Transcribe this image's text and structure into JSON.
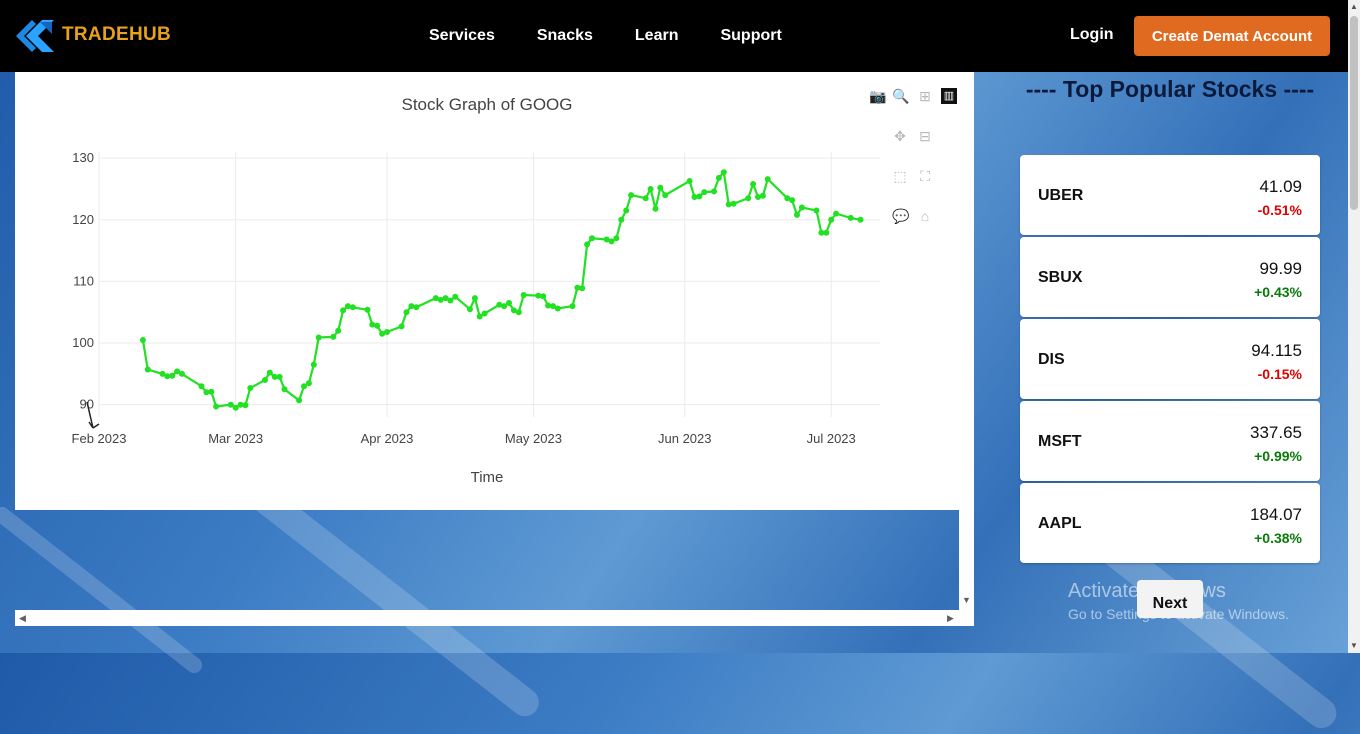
{
  "brand": {
    "name": "TRADEHUB",
    "logo_icon": "double-arrow-logo-icon",
    "accent": "#e8a11c"
  },
  "nav": {
    "links": [
      "Services",
      "Snacks",
      "Learn",
      "Support"
    ],
    "login": "Login",
    "cta": "Create Demat Account",
    "cta_color": "#e06a1f"
  },
  "chart_data": {
    "type": "line",
    "title": "Stock Graph of GOOG",
    "xlabel": "Time",
    "ylabel": "",
    "x_ticks": [
      "Feb 2023",
      "Mar 2023",
      "Apr 2023",
      "May 2023",
      "Jun 2023",
      "Jul 2023"
    ],
    "y_ticks": [
      90,
      100,
      110,
      120,
      130
    ],
    "ylim": [
      88,
      131
    ],
    "xlim": [
      "2023-02-01",
      "2023-07-11"
    ],
    "grid": true,
    "line_color": "#22e022",
    "series": [
      {
        "name": "",
        "points": [
          [
            "2023-02-10",
            100.5
          ],
          [
            "2023-02-11",
            95.7
          ],
          [
            "2023-02-14",
            95.0
          ],
          [
            "2023-02-15",
            94.6
          ],
          [
            "2023-02-16",
            94.7
          ],
          [
            "2023-02-17",
            95.4
          ],
          [
            "2023-02-18",
            95.0
          ],
          [
            "2023-02-22",
            93.0
          ],
          [
            "2023-02-23",
            92.0
          ],
          [
            "2023-02-24",
            92.1
          ],
          [
            "2023-02-25",
            89.7
          ],
          [
            "2023-02-28",
            90.0
          ],
          [
            "2023-03-01",
            89.5
          ],
          [
            "2023-03-02",
            90.0
          ],
          [
            "2023-03-03",
            89.9
          ],
          [
            "2023-03-04",
            92.7
          ],
          [
            "2023-03-07",
            94.0
          ],
          [
            "2023-03-08",
            95.2
          ],
          [
            "2023-03-09",
            94.5
          ],
          [
            "2023-03-10",
            94.5
          ],
          [
            "2023-03-11",
            92.5
          ],
          [
            "2023-03-14",
            90.7
          ],
          [
            "2023-03-15",
            93.0
          ],
          [
            "2023-03-16",
            93.5
          ],
          [
            "2023-03-17",
            96.5
          ],
          [
            "2023-03-18",
            100.9
          ],
          [
            "2023-03-21",
            101.0
          ],
          [
            "2023-03-22",
            102.0
          ],
          [
            "2023-03-23",
            105.3
          ],
          [
            "2023-03-24",
            106.0
          ],
          [
            "2023-03-25",
            105.8
          ],
          [
            "2023-03-28",
            105.4
          ],
          [
            "2023-03-29",
            103.0
          ],
          [
            "2023-03-30",
            102.8
          ],
          [
            "2023-03-31",
            101.5
          ],
          [
            "2023-04-01",
            101.8
          ],
          [
            "2023-04-04",
            102.7
          ],
          [
            "2023-04-05",
            105.0
          ],
          [
            "2023-04-06",
            106.0
          ],
          [
            "2023-04-07",
            105.8
          ],
          [
            "2023-04-11",
            107.3
          ],
          [
            "2023-04-12",
            107.0
          ],
          [
            "2023-04-13",
            107.3
          ],
          [
            "2023-04-14",
            106.9
          ],
          [
            "2023-04-15",
            107.5
          ],
          [
            "2023-04-18",
            105.5
          ],
          [
            "2023-04-19",
            107.3
          ],
          [
            "2023-04-20",
            104.3
          ],
          [
            "2023-04-21",
            104.8
          ],
          [
            "2023-04-24",
            106.2
          ],
          [
            "2023-04-25",
            106.0
          ],
          [
            "2023-04-26",
            106.5
          ],
          [
            "2023-04-27",
            105.3
          ],
          [
            "2023-04-28",
            105.0
          ],
          [
            "2023-04-29",
            107.8
          ],
          [
            "2023-05-02",
            107.7
          ],
          [
            "2023-05-03",
            107.6
          ],
          [
            "2023-05-04",
            106.1
          ],
          [
            "2023-05-05",
            106.0
          ],
          [
            "2023-05-06",
            105.6
          ],
          [
            "2023-05-09",
            106.0
          ],
          [
            "2023-05-10",
            109.0
          ],
          [
            "2023-05-11",
            108.9
          ],
          [
            "2023-05-12",
            116.0
          ],
          [
            "2023-05-13",
            117.0
          ],
          [
            "2023-05-16",
            116.8
          ],
          [
            "2023-05-17",
            116.5
          ],
          [
            "2023-05-18",
            117.0
          ],
          [
            "2023-05-19",
            120.0
          ],
          [
            "2023-05-20",
            121.5
          ],
          [
            "2023-05-21",
            124.0
          ],
          [
            "2023-05-24",
            123.5
          ],
          [
            "2023-05-25",
            125.0
          ],
          [
            "2023-05-26",
            121.8
          ],
          [
            "2023-05-27",
            125.2
          ],
          [
            "2023-05-28",
            124.0
          ],
          [
            "2023-06-02",
            126.3
          ],
          [
            "2023-06-03",
            123.7
          ],
          [
            "2023-06-04",
            123.8
          ],
          [
            "2023-06-05",
            124.5
          ],
          [
            "2023-06-07",
            124.6
          ],
          [
            "2023-06-08",
            126.8
          ],
          [
            "2023-06-09",
            127.7
          ],
          [
            "2023-06-10",
            122.5
          ],
          [
            "2023-06-11",
            122.6
          ],
          [
            "2023-06-14",
            123.5
          ],
          [
            "2023-06-15",
            125.8
          ],
          [
            "2023-06-16",
            123.7
          ],
          [
            "2023-06-17",
            123.9
          ],
          [
            "2023-06-18",
            126.6
          ],
          [
            "2023-06-22",
            123.5
          ],
          [
            "2023-06-23",
            123.2
          ],
          [
            "2023-06-24",
            120.8
          ],
          [
            "2023-06-25",
            122.0
          ],
          [
            "2023-06-28",
            121.5
          ],
          [
            "2023-06-29",
            117.9
          ],
          [
            "2023-06-30",
            117.9
          ],
          [
            "2023-07-01",
            120.0
          ],
          [
            "2023-07-02",
            121.0
          ],
          [
            "2023-07-05",
            120.3
          ],
          [
            "2023-07-07",
            120.0
          ]
        ]
      }
    ],
    "modebar_icons": [
      "camera-icon",
      "zoom-icon",
      "zoom-in-icon",
      "bar-chart-logo-icon",
      "pan-icon",
      "zoom-out-icon",
      "box-select-icon",
      "autoscale-icon",
      "hover-compare-icon",
      "reset-axes-icon"
    ]
  },
  "sidebar": {
    "title": "---- Top Popular Stocks ----",
    "stocks": [
      {
        "symbol": "UBER",
        "price": "41.09",
        "change": "-0.51%",
        "direction": "down"
      },
      {
        "symbol": "SBUX",
        "price": "99.99",
        "change": "+0.43%",
        "direction": "up"
      },
      {
        "symbol": "DIS",
        "price": "94.115",
        "change": "-0.15%",
        "direction": "down"
      },
      {
        "symbol": "MSFT",
        "price": "337.65",
        "change": "+0.99%",
        "direction": "up"
      },
      {
        "symbol": "AAPL",
        "price": "184.07",
        "change": "+0.38%",
        "direction": "up"
      }
    ],
    "up_color": "#0a7a0a",
    "down_color": "#e00000",
    "next": "Next"
  },
  "watermark": {
    "line1": "Activate Windows",
    "line2": "Go to Settings to activate Windows."
  }
}
